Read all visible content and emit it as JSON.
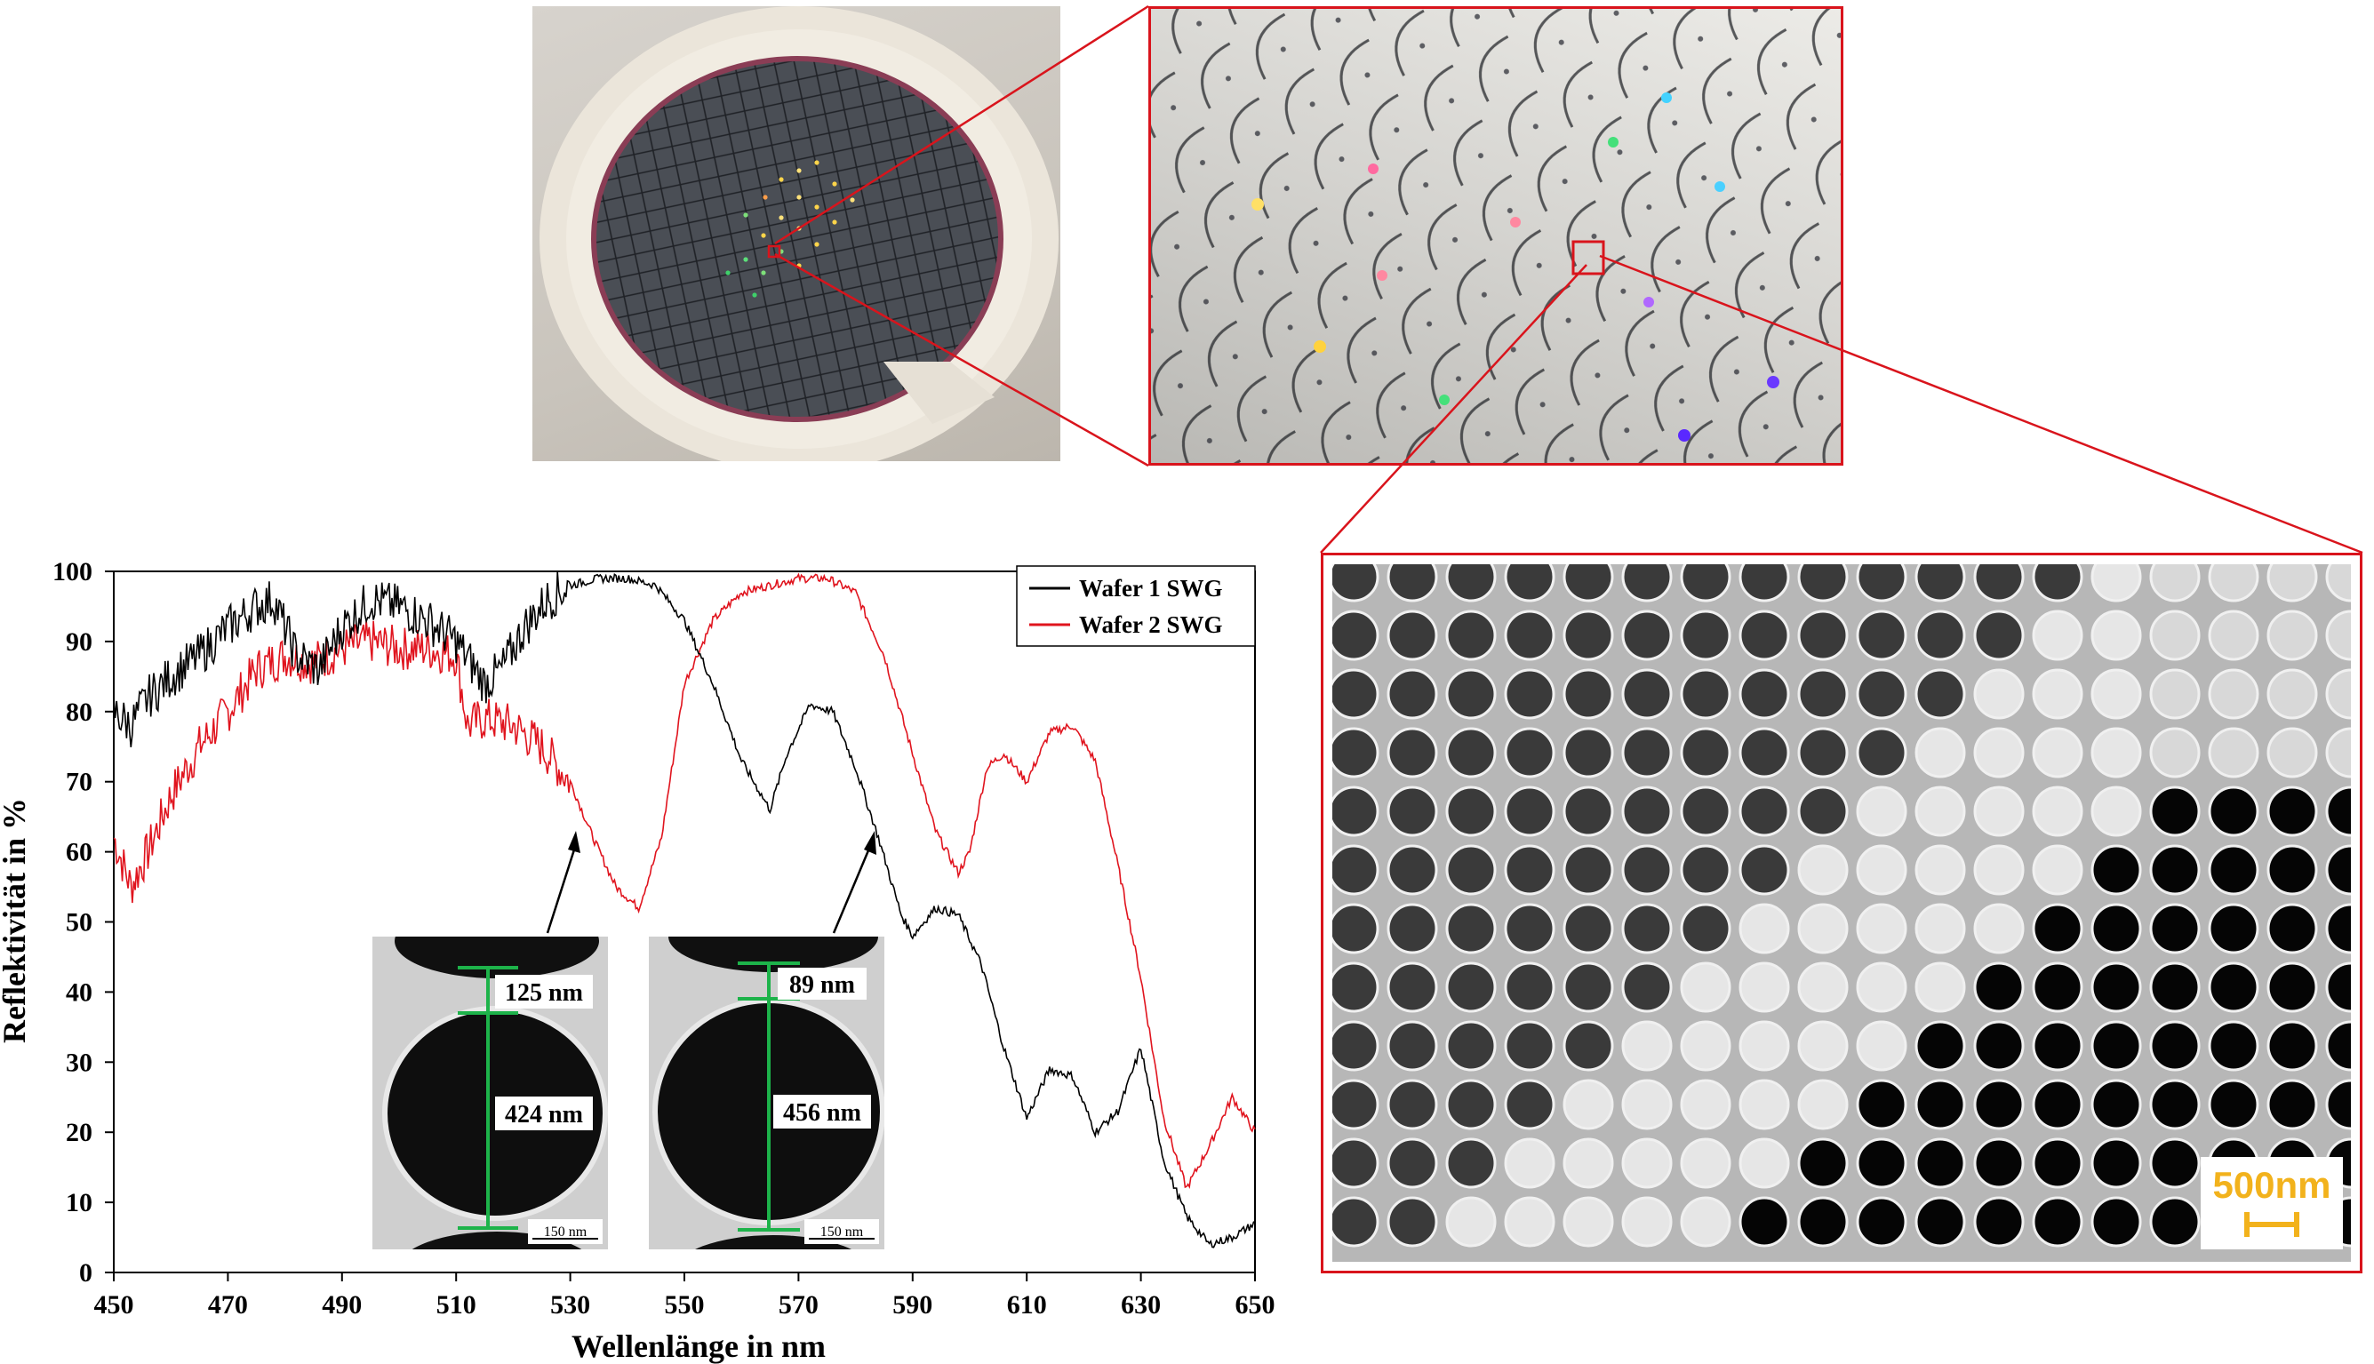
{
  "chart_data": {
    "type": "line",
    "xlabel": "Wellenlänge in nm",
    "ylabel": "Reflektivität in %",
    "xlim": [
      450,
      650
    ],
    "ylim": [
      0,
      100
    ],
    "xticks": [
      450,
      470,
      490,
      510,
      530,
      550,
      570,
      590,
      610,
      630,
      650
    ],
    "yticks": [
      0,
      10,
      20,
      30,
      40,
      50,
      60,
      70,
      80,
      90,
      100
    ],
    "legend_position": "top-right",
    "series": [
      {
        "name": "Wafer 1 SWG",
        "color": "#000000",
        "x": [
          450,
          453,
          456,
          460,
          465,
          470,
          475,
          478,
          482,
          486,
          490,
          495,
          500,
          505,
          510,
          515,
          518,
          522,
          526,
          530,
          535,
          540,
          545,
          550,
          555,
          560,
          565,
          568,
          572,
          576,
          580,
          584,
          588,
          590,
          594,
          598,
          602,
          606,
          610,
          614,
          618,
          622,
          626,
          630,
          634,
          638,
          642,
          646,
          650
        ],
        "values": [
          80,
          78,
          82,
          85,
          88,
          92,
          95,
          96,
          88,
          86,
          92,
          96,
          95,
          93,
          90,
          84,
          86,
          92,
          96,
          98,
          99,
          99,
          98,
          93,
          84,
          73,
          66,
          74,
          81,
          80,
          72,
          62,
          51,
          48,
          52,
          51,
          44,
          32,
          22,
          29,
          28,
          20,
          23,
          32,
          16,
          8,
          4,
          5,
          7
        ]
      },
      {
        "name": "Wafer 2 SWG",
        "color": "#e0141e",
        "x": [
          450,
          453,
          456,
          460,
          465,
          470,
          475,
          480,
          485,
          490,
          495,
          500,
          505,
          510,
          512,
          515,
          520,
          525,
          530,
          534,
          538,
          542,
          546,
          550,
          555,
          560,
          565,
          570,
          575,
          580,
          585,
          590,
          594,
          598,
          600,
          603,
          606,
          610,
          614,
          618,
          622,
          626,
          630,
          634,
          638,
          642,
          646,
          650
        ],
        "values": [
          62,
          55,
          60,
          68,
          75,
          80,
          86,
          88,
          87,
          89,
          90,
          89,
          89,
          88,
          78,
          79,
          78,
          75,
          70,
          62,
          55,
          52,
          62,
          84,
          93,
          97,
          98,
          99,
          99,
          97,
          88,
          74,
          63,
          57,
          60,
          72,
          74,
          70,
          77,
          78,
          73,
          58,
          42,
          22,
          12,
          18,
          25,
          20
        ]
      }
    ]
  },
  "insets": [
    {
      "gap_label": "125 nm",
      "hole_label": "424 nm",
      "scale_label": "150 nm"
    },
    {
      "gap_label": "89 nm",
      "hole_label": "456 nm",
      "scale_label": "150 nm"
    }
  ],
  "sem_scale_label": "500nm",
  "colors": {
    "highlight": "#d9141c",
    "scale": "#f2b21c",
    "green": "#1db34a"
  }
}
